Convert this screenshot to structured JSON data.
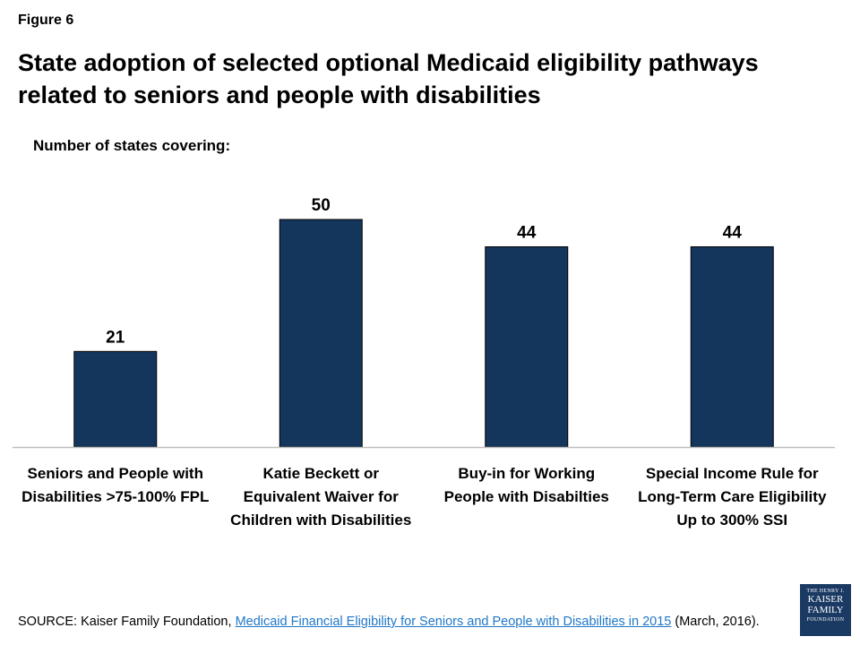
{
  "figure_label": "Figure 6",
  "title": "State adoption of selected optional Medicaid eligibility pathways related to seniors and people with disabilities",
  "subtitle": "Number of states covering:",
  "colors": {
    "bar": "#15365c",
    "baseline": "#bfbfbf"
  },
  "chart_data": {
    "type": "bar",
    "title": "State adoption of selected optional Medicaid eligibility pathways related to seniors and people with disabilities",
    "ylabel": "Number of states covering:",
    "xlabel": "",
    "categories": [
      [
        "Seniors and People with",
        "Disabilities >75-100% FPL"
      ],
      [
        "Katie Beckett or",
        "Equivalent Waiver for",
        "Children with Disabilities"
      ],
      [
        "Buy-in for Working",
        "People with Disabilties"
      ],
      [
        "Special Income Rule for",
        "Long-Term Care Eligibility",
        "Up to 300% SSI"
      ]
    ],
    "values": [
      21,
      50,
      44,
      44
    ],
    "ylim": [
      0,
      50
    ],
    "grid": false,
    "data_labels": true
  },
  "source": {
    "prefix": "SOURCE:  Kaiser Family Foundation, ",
    "link_text": "Medicaid Financial Eligibility for Seniors and People with Disabilities in 2015",
    "suffix": " (March, 2016)."
  },
  "logo": {
    "line1": "THE HENRY J.",
    "line2": "KAISER",
    "line3": "FAMILY",
    "line4": "FOUNDATION"
  }
}
